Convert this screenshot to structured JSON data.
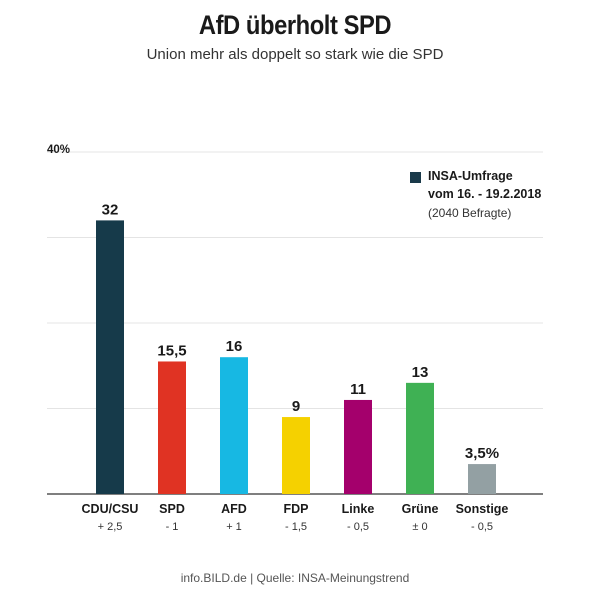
{
  "header": {
    "title": "AfD überholt SPD",
    "subtitle": "Union mehr als doppelt so stark wie die SPD"
  },
  "legend": {
    "line1": "INSA-Umfrage",
    "line2": "vom 16. - 19.2.2018",
    "line3": "(2040 Befragte)",
    "color": "#1a3a4a"
  },
  "footer": "info.BILD.de | Quelle: INSA-Meinungstrend",
  "chart_data": {
    "type": "bar",
    "title": "AfD überholt SPD",
    "subtitle": "Union mehr als doppelt so stark wie die SPD",
    "ylim": [
      0,
      40
    ],
    "y_top_label": "40%",
    "grid": true,
    "legend_position": "top-right",
    "categories": [
      "CDU/CSU",
      "SPD",
      "AFD",
      "FDP",
      "Linke",
      "Grüne",
      "Sonstige"
    ],
    "values": [
      32,
      15.5,
      16,
      9,
      11,
      13,
      3.5
    ],
    "value_labels": [
      "32",
      "15,5",
      "16",
      "9",
      "11",
      "13",
      "3,5%"
    ],
    "changes": [
      "+ 2,5",
      "- 1",
      "+ 1",
      "- 1,5",
      "- 0,5",
      "± 0",
      "- 0,5"
    ],
    "colors": [
      "#163a4a",
      "#e03323",
      "#17b8e3",
      "#f5d100",
      "#a4006c",
      "#3fb154",
      "#93a0a3"
    ]
  }
}
